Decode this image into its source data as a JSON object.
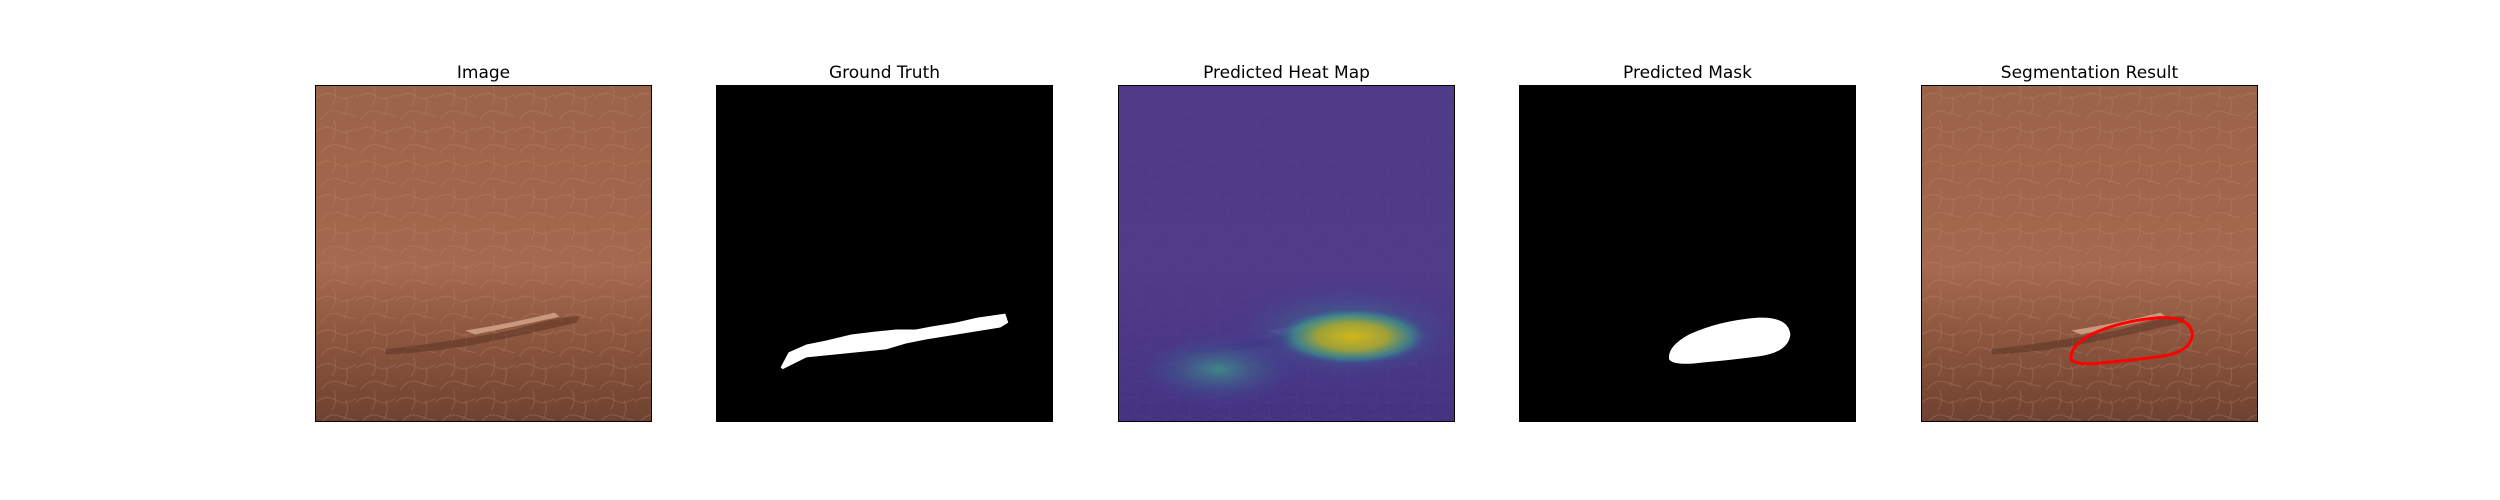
{
  "panels": [
    {
      "title": "Image"
    },
    {
      "title": "Ground Truth"
    },
    {
      "title": "Predicted Heat Map"
    },
    {
      "title": "Predicted Mask"
    },
    {
      "title": "Segmentation Result"
    }
  ],
  "colors": {
    "leather": "#a0664c",
    "mask": "#ffffff",
    "background": "#000000",
    "heat_low": "#3a2f9a",
    "heat_high": "#d2c21a",
    "contour": "#ff0000"
  }
}
